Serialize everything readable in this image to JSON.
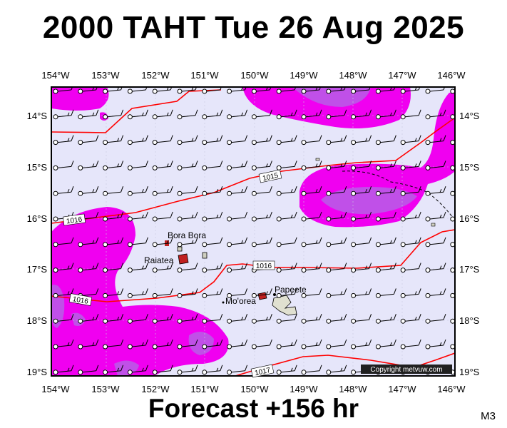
{
  "title": "2000 TAHT Tue 26 Aug 2025",
  "footer": "Forecast +156 hr",
  "code": "M3",
  "copyright": "Copyright metvuw.com",
  "lon_labels": [
    "154°W",
    "153°W",
    "152°W",
    "151°W",
    "150°W",
    "149°W",
    "148°W",
    "147°W",
    "146°W"
  ],
  "lat_labels": [
    "14°S",
    "15°S",
    "16°S",
    "17°S",
    "18°S",
    "19°S"
  ],
  "places": {
    "bora_bora": "Bora Bora",
    "raiatea": "Raiatea",
    "moorea": "Mo'orea",
    "papeete": "Papeete"
  },
  "isobars": {
    "a": "1015",
    "b": "1016",
    "c": "1016",
    "d": "1016",
    "e": "1017"
  },
  "colors": {
    "background": "#e6e6fa",
    "rain_light": "#f000f0",
    "rain_mid": "#c050e8",
    "rain_heavy": "#9040d8",
    "isobar": "#ff0000",
    "islands": "#d0d0c0"
  },
  "wind_barbs": "light easterly to north-easterly winds over entire region",
  "legend": "none"
}
